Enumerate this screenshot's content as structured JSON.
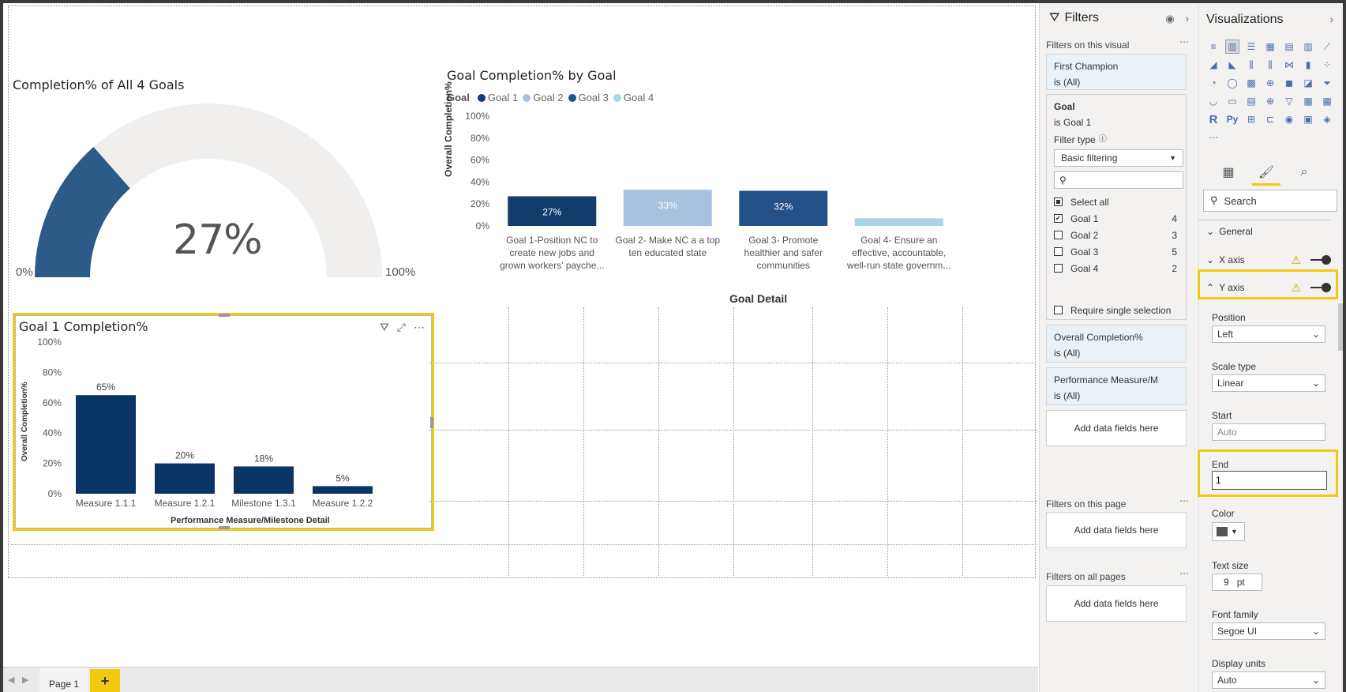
{
  "gauge": {
    "title": "Completion% of All 4 Goals",
    "value_label": "27%",
    "value": 0.27,
    "min_label": "0%",
    "max_label": "100%",
    "fill_color": "#2e5a88",
    "track_color": "#f0efee"
  },
  "chart_data": [
    {
      "type": "bar",
      "title": "Goal Completion% by Goal",
      "legend_title": "Goal",
      "legend": [
        "Goal 1",
        "Goal 2",
        "Goal 3",
        "Goal 4"
      ],
      "legend_colors": [
        "#123c6b",
        "#a7c2de",
        "#24518a",
        "#a9d5e6"
      ],
      "categories": [
        [
          "Goal 1-Position NC to",
          "create new jobs and",
          "grown workers' payche..."
        ],
        [
          "Goal 2- Make NC a a top",
          "ten educated state"
        ],
        [
          "Goal 3- Promote",
          "healthier and safer",
          "communities"
        ],
        [
          "Goal 4- Ensure an",
          "effective, accountable,",
          "well-run state governm..."
        ]
      ],
      "values": [
        27,
        33,
        32,
        7
      ],
      "data_labels": [
        "27%",
        "33%",
        "32%",
        ""
      ],
      "ylim": [
        0,
        100
      ],
      "yticks": [
        "100%",
        "80%",
        "60%",
        "40%",
        "20%",
        "0%"
      ],
      "xlabel": "Goal Detail",
      "ylabel": "Overall Completion%"
    },
    {
      "type": "bar",
      "title": "Goal 1 Completion%",
      "categories": [
        "Measure 1.1.1",
        "Measure 1.2.1",
        "Milestone 1.3.1",
        "Measure 1.2.2"
      ],
      "values": [
        65,
        20,
        18,
        5
      ],
      "data_labels": [
        "65%",
        "20%",
        "18%",
        "5%"
      ],
      "ylim": [
        0,
        100
      ],
      "yticks": [
        "100%",
        "80%",
        "60%",
        "40%",
        "20%",
        "0%"
      ],
      "xlabel": "Performance Measure/Milestone Detail",
      "ylabel": "Overall Completion%",
      "bar_color": "#0b3466"
    }
  ],
  "tabs": {
    "page1": "Page 1",
    "add": "+"
  },
  "filters": {
    "title": "Filters",
    "on_visual": "Filters on this visual",
    "card1_name": "First Champion",
    "card1_value": "is (All)",
    "goal_name": "Goal",
    "goal_value": "is Goal 1",
    "filter_type_label": "Filter type",
    "filter_type_value": "Basic filtering",
    "items": [
      {
        "label": "Select all",
        "count": "",
        "state": "partial"
      },
      {
        "label": "Goal 1",
        "count": "4",
        "state": "checked"
      },
      {
        "label": "Goal 2",
        "count": "3",
        "state": "unchecked"
      },
      {
        "label": "Goal 3",
        "count": "5",
        "state": "unchecked"
      },
      {
        "label": "Goal 4",
        "count": "2",
        "state": "unchecked"
      }
    ],
    "require_single": "Require single selection",
    "card3_name": "Overall Completion%",
    "card3_value": "is (All)",
    "card4_name": "Performance Measure/M",
    "card4_value": "is (All)",
    "add_fields": "Add data fields here",
    "on_page": "Filters on this page",
    "on_all_pages": "Filters on all pages"
  },
  "viz": {
    "title": "Visualizations",
    "search_placeholder": "Search",
    "sections": {
      "general": "General",
      "x_axis": "X axis",
      "y_axis": "Y axis"
    },
    "position_label": "Position",
    "position_value": "Left",
    "scale_label": "Scale type",
    "scale_value": "Linear",
    "start_label": "Start",
    "start_value": "Auto",
    "end_label": "End",
    "end_value": "1",
    "color_label": "Color",
    "text_size_label": "Text size",
    "text_size_value": "9",
    "text_size_unit": "pt",
    "font_family_label": "Font family",
    "font_family_value": "Segoe UI",
    "display_units_label": "Display units",
    "display_units_value": "Auto",
    "icons": [
      "stacked-bar",
      "stacked-column",
      "clustered-bar",
      "clustered-column",
      "100-bar",
      "100-column",
      "line",
      "area",
      "stacked-area",
      "line-column",
      "line-clustered",
      "ribbon",
      "waterfall",
      "scatter",
      "pie",
      "donut",
      "treemap",
      "map",
      "filled-map",
      "shape-map",
      "funnel",
      "gauge",
      "card",
      "multi-row-card",
      "kpi",
      "slicer",
      "table",
      "matrix",
      "R",
      "Py",
      "key-influencers",
      "decomposition",
      "qa",
      "smart-narrative",
      "power-apps",
      "more"
    ]
  }
}
